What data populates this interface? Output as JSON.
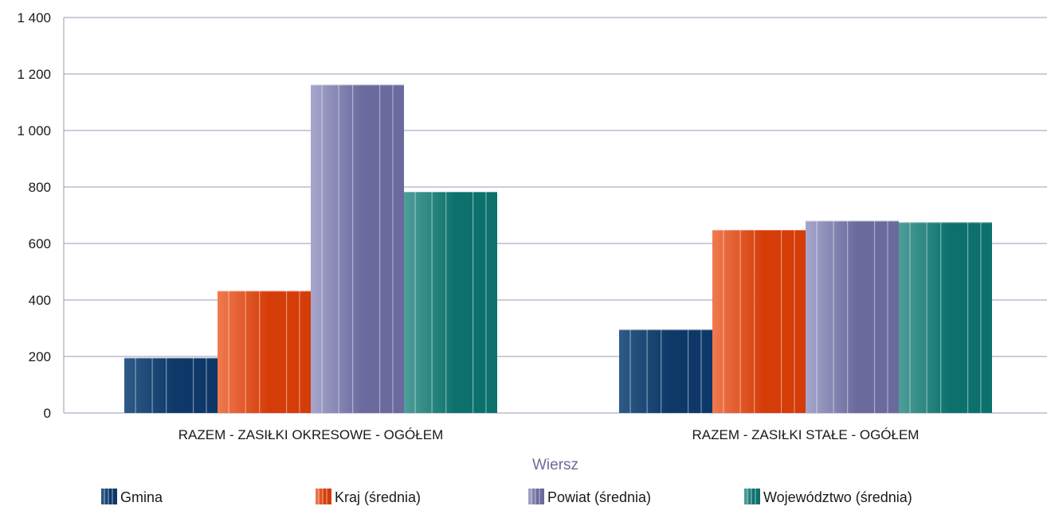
{
  "chart_data": {
    "type": "bar",
    "categories": [
      "RAZEM -  ZASIŁKI OKRESOWE - OGÓŁEM",
      "RAZEM - ZASIŁKI STAŁE - OGÓŁEM"
    ],
    "series": [
      {
        "name": "Gmina",
        "values": [
          195,
          295
        ],
        "colors": [
          "#0d3868",
          "#2e5a86"
        ]
      },
      {
        "name": "Kraj (średnia)",
        "values": [
          432,
          648
        ],
        "colors": [
          "#d43c08",
          "#f07a50"
        ]
      },
      {
        "name": "Powiat (średnia)",
        "values": [
          1162,
          680
        ],
        "colors": [
          "#6a6a9e",
          "#a6a6cc"
        ]
      },
      {
        "name": "Województwo (średnia)",
        "values": [
          783,
          675
        ],
        "colors": [
          "#0c716c",
          "#4e9e98"
        ]
      }
    ],
    "y_ticks": [
      "0",
      "200",
      "400",
      "600",
      "800",
      "1 000",
      "1 200",
      "1 400"
    ],
    "ylim": [
      0,
      1400
    ],
    "xlabel": "Wiersz",
    "ylabel": "",
    "grid": true,
    "legend_position": "bottom"
  }
}
